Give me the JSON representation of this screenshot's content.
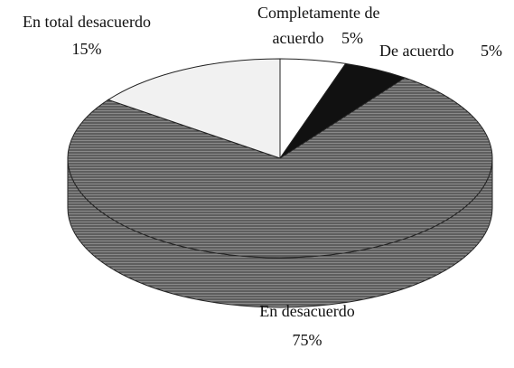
{
  "chart_data": {
    "type": "pie",
    "categories": [
      "Completamente de acuerdo",
      "De acuerdo",
      "En desacuerdo",
      "En total desacuerdo"
    ],
    "values": [
      5,
      5,
      75,
      15
    ],
    "value_labels": [
      "5%",
      "5%",
      "75%",
      "15%"
    ],
    "colors": [
      "#ffffff",
      "#111111",
      "#8a8a8a",
      "#f1f1f1"
    ]
  }
}
